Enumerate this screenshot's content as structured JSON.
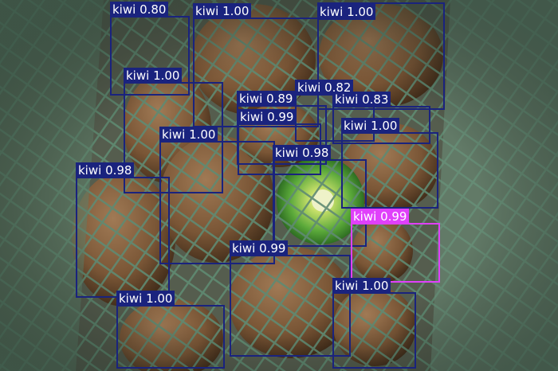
{
  "colors": {
    "box": "#1a237e",
    "box_alt": "#e040fb",
    "label_text": "#ffffff"
  },
  "detections": [
    {
      "label": "kiwi",
      "score": "0.80"
    },
    {
      "label": "kiwi",
      "score": "1.00"
    },
    {
      "label": "kiwi",
      "score": "1.00"
    },
    {
      "label": "kiwi",
      "score": "1.00"
    },
    {
      "label": "kiwi",
      "score": "0.82"
    },
    {
      "label": "kiwi",
      "score": "0.89"
    },
    {
      "label": "kiwi",
      "score": "0.83"
    },
    {
      "label": "kiwi",
      "score": "0.99"
    },
    {
      "label": "kiwi",
      "score": "1.00"
    },
    {
      "label": "kiwi",
      "score": "1.00"
    },
    {
      "label": "kiwi",
      "score": "0.98"
    },
    {
      "label": "kiwi",
      "score": "0.98"
    },
    {
      "label": "kiwi",
      "score": "0.99"
    },
    {
      "label": "kiwi",
      "score": "0.99"
    },
    {
      "label": "kiwi",
      "score": "1.00"
    },
    {
      "label": "kiwi",
      "score": "1.00"
    }
  ]
}
